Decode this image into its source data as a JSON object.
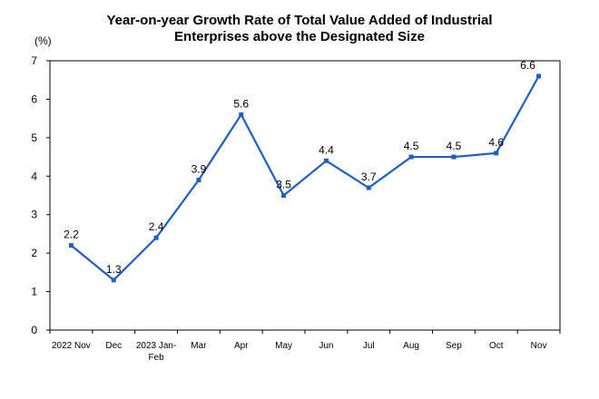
{
  "chart_data": {
    "type": "line",
    "title_line1": "Year-on-year Growth Rate of Total Value Added of Industrial",
    "title_line2": "Enterprises above the Designated Size",
    "y_unit": "(%)",
    "categories": [
      [
        "2022 Nov"
      ],
      [
        "Dec"
      ],
      [
        "2023 Jan-",
        "Feb"
      ],
      [
        "Mar"
      ],
      [
        "Apr"
      ],
      [
        "May"
      ],
      [
        "Jun"
      ],
      [
        "Jul"
      ],
      [
        "Aug"
      ],
      [
        "Sep"
      ],
      [
        "Oct"
      ],
      [
        "Nov"
      ]
    ],
    "values": [
      2.2,
      1.3,
      2.4,
      3.9,
      5.6,
      3.5,
      4.4,
      3.7,
      4.5,
      4.5,
      4.6,
      6.6
    ],
    "ylim": [
      0,
      7
    ],
    "yticks": [
      0,
      1,
      2,
      3,
      4,
      5,
      6,
      7
    ],
    "grid": false,
    "line_color": "#1f5fbf"
  }
}
